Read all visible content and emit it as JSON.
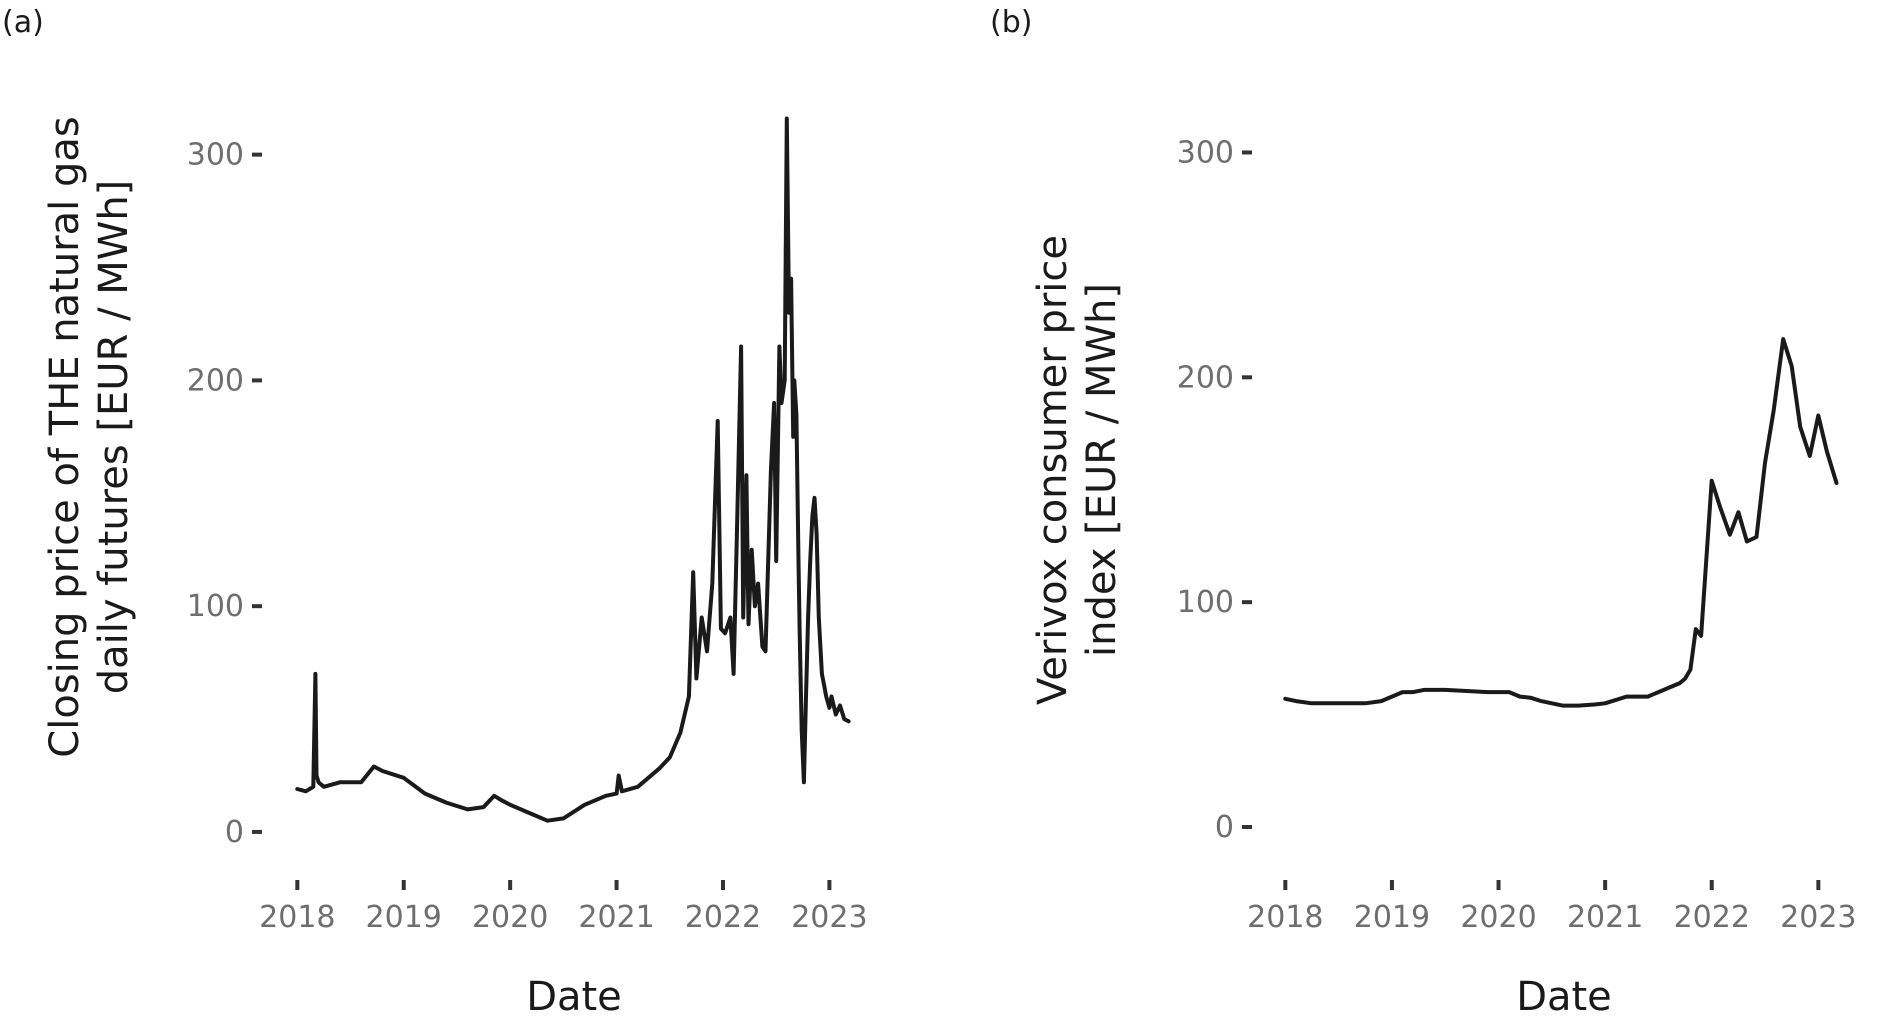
{
  "chart_data": [
    {
      "panel_label": "(a)",
      "type": "line",
      "xlabel": "Date",
      "ylabel_lines": [
        "Closing price of THE natural gas",
        "daily futures [EUR / MWh]"
      ],
      "ylim": [
        -8,
        318
      ],
      "xlim": [
        2017.95,
        2023.25
      ],
      "xticks": [
        2018,
        2019,
        2020,
        2021,
        2022,
        2023
      ],
      "xtick_labels": [
        "2018",
        "2019",
        "2020",
        "2021",
        "2022",
        "2023"
      ],
      "yticks": [
        0,
        100,
        200,
        300
      ],
      "ytick_labels": [
        "0",
        "100",
        "200",
        "300"
      ],
      "grid": false,
      "series": [
        {
          "x": [
            2018.0,
            2018.08,
            2018.15,
            2018.17,
            2018.18,
            2018.2,
            2018.25,
            2018.4,
            2018.6,
            2018.72,
            2018.8,
            2019.0,
            2019.2,
            2019.4,
            2019.6,
            2019.75,
            2019.85,
            2019.92,
            2020.0,
            2020.2,
            2020.35,
            2020.5,
            2020.7,
            2020.9,
            2021.0,
            2021.02,
            2021.05,
            2021.2,
            2021.4,
            2021.5,
            2021.6,
            2021.68,
            2021.72,
            2021.75,
            2021.8,
            2021.85,
            2021.9,
            2021.95,
            2021.98,
            2022.02,
            2022.07,
            2022.1,
            2022.13,
            2022.17,
            2022.19,
            2022.22,
            2022.24,
            2022.27,
            2022.3,
            2022.33,
            2022.37,
            2022.4,
            2022.45,
            2022.48,
            2022.5,
            2022.53,
            2022.55,
            2022.58,
            2022.6,
            2022.62,
            2022.64,
            2022.66,
            2022.67,
            2022.69,
            2022.71,
            2022.72,
            2022.74,
            2022.76,
            2022.78,
            2022.8,
            2022.82,
            2022.84,
            2022.86,
            2022.88,
            2022.9,
            2022.93,
            2022.95,
            2022.97,
            2023.0,
            2023.02,
            2023.06,
            2023.1,
            2023.14,
            2023.18
          ],
          "y": [
            19,
            18,
            20,
            70,
            25,
            22,
            20,
            22,
            22,
            29,
            27,
            24,
            17,
            13,
            10,
            11,
            16,
            14,
            12,
            8,
            5,
            6,
            12,
            16,
            17,
            25,
            18,
            20,
            28,
            33,
            44,
            60,
            115,
            68,
            95,
            80,
            110,
            182,
            90,
            88,
            95,
            70,
            130,
            215,
            95,
            158,
            92,
            125,
            100,
            110,
            82,
            80,
            160,
            190,
            120,
            215,
            190,
            200,
            316,
            230,
            245,
            175,
            200,
            185,
            120,
            90,
            45,
            22,
            60,
            95,
            120,
            140,
            148,
            132,
            95,
            70,
            65,
            60,
            55,
            60,
            52,
            56,
            50,
            49
          ]
        }
      ]
    },
    {
      "panel_label": "(b)",
      "type": "line",
      "xlabel": "Date",
      "ylabel_lines": [
        "Verivox consumer price",
        "index [EUR / MWh]"
      ],
      "ylim": [
        -8,
        318
      ],
      "xlim": [
        2017.95,
        2023.25
      ],
      "xticks": [
        2018,
        2019,
        2020,
        2021,
        2022,
        2023
      ],
      "xtick_labels": [
        "2018",
        "2019",
        "2020",
        "2021",
        "2022",
        "2023"
      ],
      "yticks": [
        0,
        100,
        200,
        300
      ],
      "ytick_labels": [
        "0",
        "100",
        "200",
        "300"
      ],
      "grid": false,
      "series": [
        {
          "x": [
            2018.0,
            2018.1,
            2018.25,
            2018.5,
            2018.75,
            2018.9,
            2019.0,
            2019.1,
            2019.2,
            2019.3,
            2019.5,
            2019.7,
            2019.9,
            2020.1,
            2020.2,
            2020.3,
            2020.4,
            2020.5,
            2020.6,
            2020.75,
            2020.9,
            2021.0,
            2021.2,
            2021.4,
            2021.6,
            2021.7,
            2021.75,
            2021.8,
            2021.85,
            2021.9,
            2022.0,
            2022.08,
            2022.17,
            2022.25,
            2022.33,
            2022.42,
            2022.5,
            2022.58,
            2022.67,
            2022.75,
            2022.83,
            2022.92,
            2023.0,
            2023.08,
            2023.17
          ],
          "y": [
            57,
            56,
            55,
            55,
            55,
            56,
            58,
            60,
            60,
            61,
            61,
            60.5,
            60,
            60,
            58,
            57.5,
            56,
            55,
            54,
            54,
            54.5,
            55,
            58,
            58,
            62,
            64,
            66,
            70,
            88,
            85,
            154,
            142,
            130,
            140,
            127,
            129,
            162,
            185,
            217,
            205,
            178,
            165,
            183,
            167,
            153
          ]
        }
      ]
    }
  ]
}
